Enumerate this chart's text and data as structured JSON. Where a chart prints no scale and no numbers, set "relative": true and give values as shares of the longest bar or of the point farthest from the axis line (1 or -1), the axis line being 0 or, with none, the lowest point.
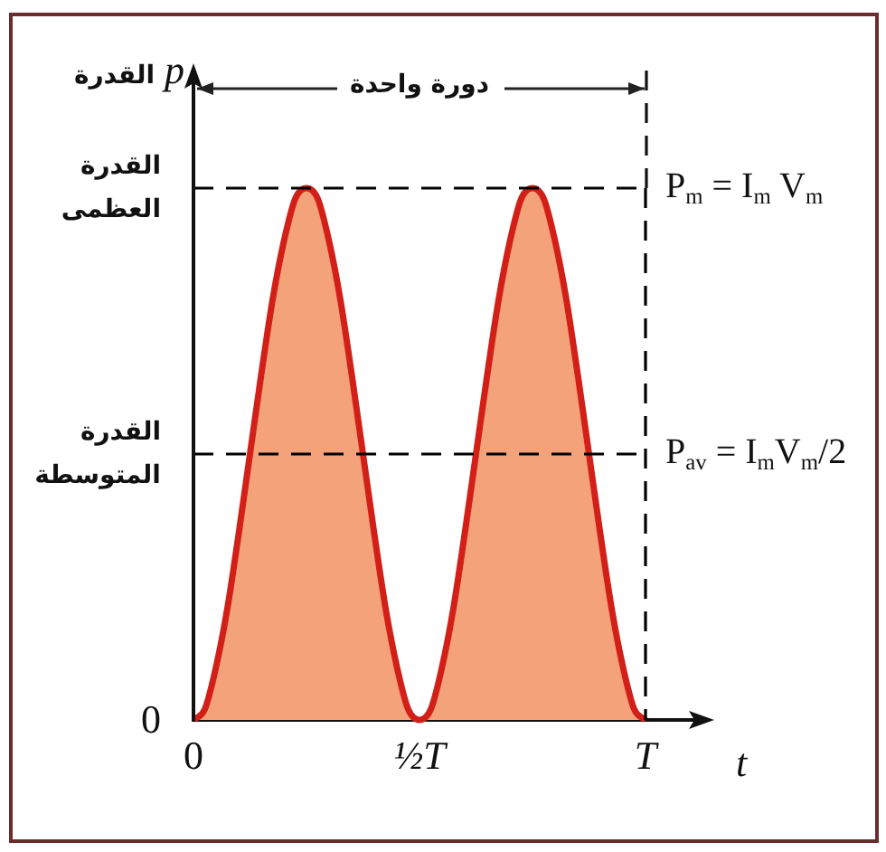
{
  "chart_data": {
    "type": "area",
    "relative": true,
    "xlabel": "t",
    "ylabel": "القدرة p",
    "annotations": [
      "دورة واحدة",
      "القدرة العظمى",
      "القدرة المتوسطة",
      "0"
    ],
    "categories": [
      "0",
      null,
      null,
      null,
      null,
      null,
      null,
      null,
      null,
      null,
      null,
      null,
      null,
      null,
      null,
      null,
      null,
      null,
      null,
      null,
      "½T",
      null,
      null,
      null,
      null,
      null,
      null,
      null,
      null,
      null,
      null,
      null,
      null,
      null,
      null,
      null,
      null,
      null,
      null,
      null,
      "T"
    ],
    "series": [
      {
        "color": "#f4a27a",
        "values": [
          0,
          0.02,
          0.1,
          0.21,
          0.35,
          0.5,
          0.65,
          0.79,
          0.9,
          0.98,
          1,
          0.98,
          0.9,
          0.79,
          0.65,
          0.5,
          0.35,
          0.21,
          0.1,
          0.02,
          0,
          0.02,
          0.1,
          0.21,
          0.35,
          0.5,
          0.65,
          0.79,
          0.9,
          0.98,
          1,
          0.98,
          0.9,
          0.79,
          0.65,
          0.5,
          0.35,
          0.21,
          0.1,
          0.02,
          0
        ]
      },
      {
        "name": "P$_{m}$ = I$_{m}$ V$_{m}$",
        "type": "line",
        "color": "#000000",
        "line_style": "dashed",
        "values": [
          1,
          1,
          1,
          1,
          1,
          1,
          1,
          1,
          1,
          1,
          1,
          1,
          1,
          1,
          1,
          1,
          1,
          1,
          1,
          1,
          1,
          1,
          1,
          1,
          1,
          1,
          1,
          1,
          1,
          1,
          1,
          1,
          1,
          1,
          1,
          1,
          1,
          1,
          1,
          1,
          1
        ]
      },
      {
        "name": "P$_{av}$ = I$_{m}$V$_{m}$/2",
        "type": "line",
        "color": "#000000",
        "line_style": "dashed",
        "values": [
          0.5,
          0.5,
          0.5,
          0.5,
          0.5,
          0.5,
          0.5,
          0.5,
          0.5,
          0.5,
          0.5,
          0.5,
          0.5,
          0.5,
          0.5,
          0.5,
          0.5,
          0.5,
          0.5,
          0.5,
          0.5,
          0.5,
          0.5,
          0.5,
          0.5,
          0.5,
          0.5,
          0.5,
          0.5,
          0.5,
          0.5,
          0.5,
          0.5,
          0.5,
          0.5,
          0.5,
          0.5,
          0.5,
          0.5,
          0.5,
          0.5
        ]
      }
    ],
    "ref_lines": [
      {
        "axis": "x",
        "value": "T",
        "line_style": "dashed",
        "color": "#000000"
      }
    ],
    "marker": "none"
  }
}
